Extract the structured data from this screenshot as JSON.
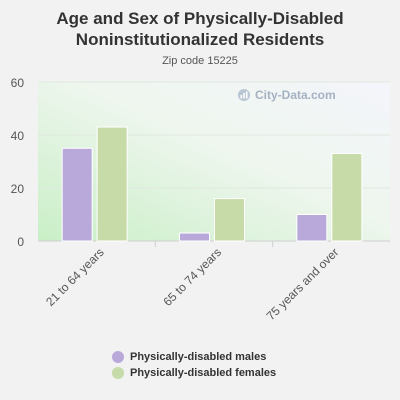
{
  "chart_data": {
    "type": "bar",
    "title": "Age and Sex of Physically-Disabled Noninstitutionalized Residents",
    "subtitle": "Zip code 15225",
    "categories": [
      "21 to 64 years",
      "65 to 74 years",
      "75 years and over"
    ],
    "series": [
      {
        "name": "Physically-disabled males",
        "values": [
          35,
          3,
          10
        ],
        "color": "#b9a9db"
      },
      {
        "name": "Physically-disabled females",
        "values": [
          43,
          16,
          33
        ],
        "color": "#c6dba8"
      }
    ],
    "ylim": [
      0,
      60
    ],
    "yticks": [
      0,
      20,
      40,
      60
    ],
    "grid": true,
    "legend_position": "bottom"
  },
  "watermark": "City-Data.com"
}
